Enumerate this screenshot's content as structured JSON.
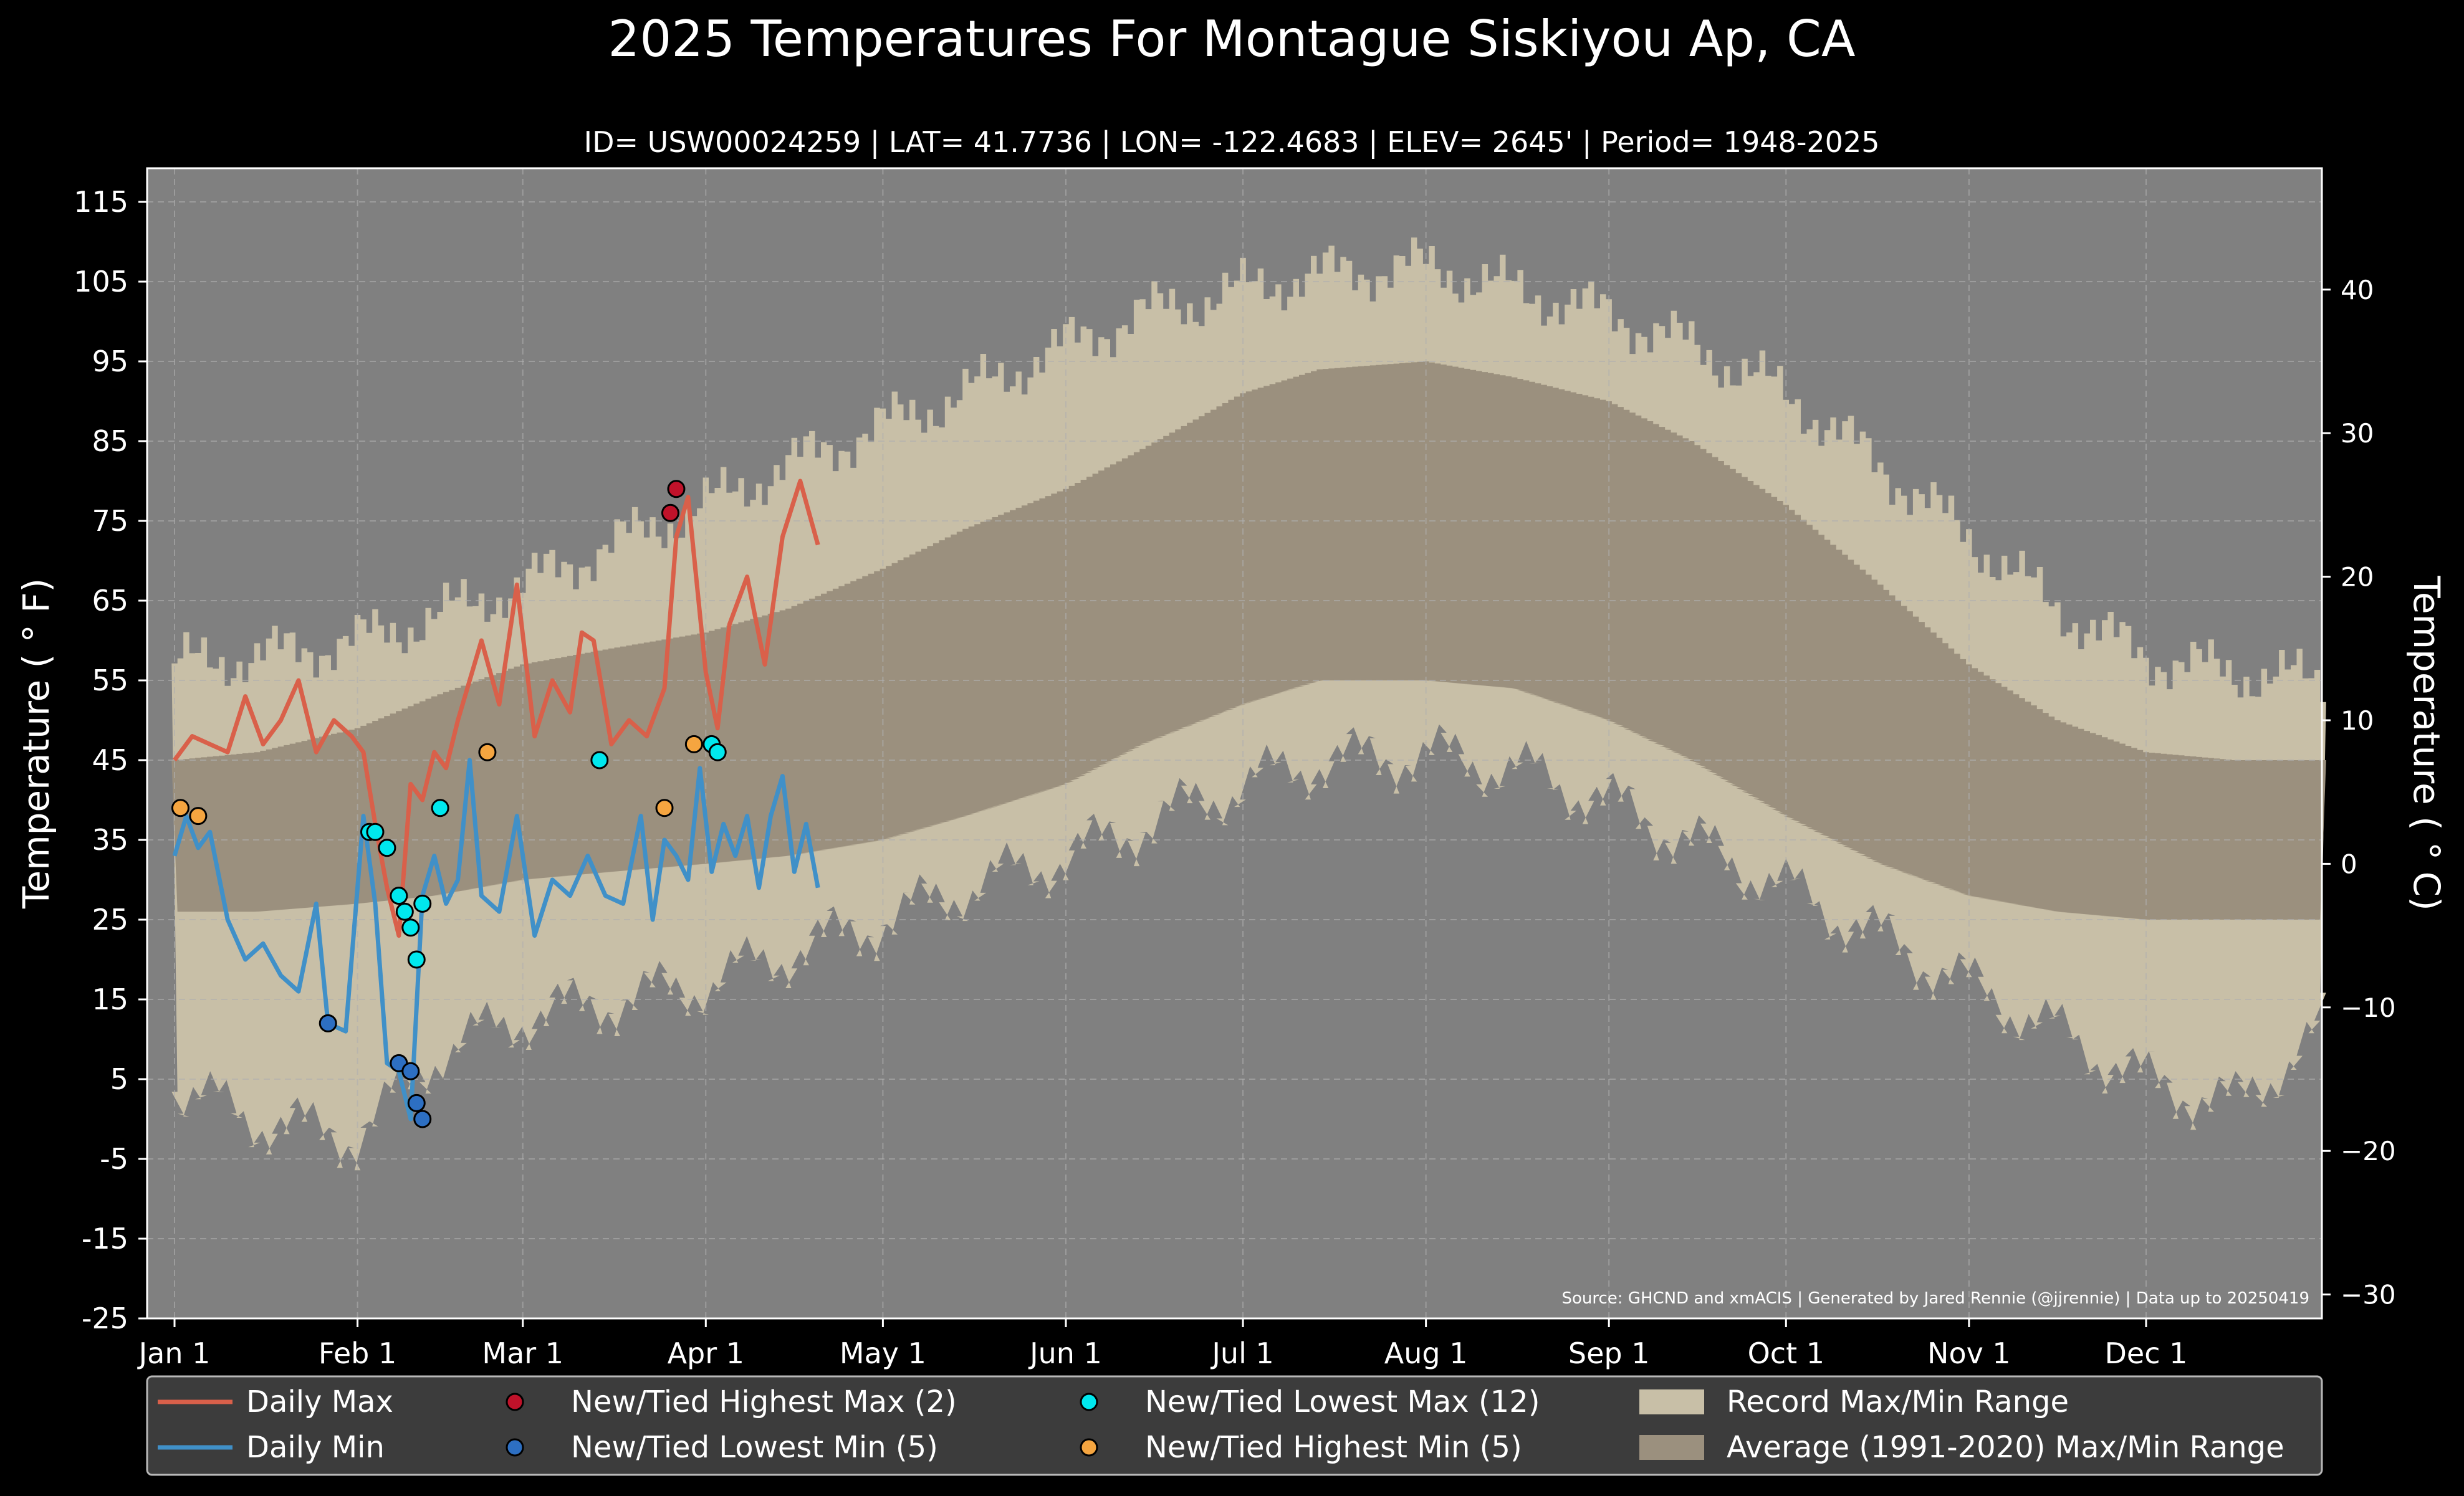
{
  "chart_data": {
    "type": "line",
    "title": "2025 Temperatures For Montague Siskiyou Ap, CA",
    "subtitle": "ID= USW00024259 | LAT= 41.7736 | LON= -122.4683 | ELEV= 2645' | Period= 1948-2025",
    "ylabel_left": "Temperature ($^\\circ$F)",
    "ylabel_left_display": "Temperature ( ° F)",
    "ylabel_right_display": "Temperature ( ° C)",
    "ylim_f": [
      -25,
      119
    ],
    "y_ticks_f": [
      "115",
      "105",
      "95",
      "85",
      "75",
      "65",
      "55",
      "45",
      "35",
      "25",
      "15",
      "5",
      "-5",
      "-15",
      "-25"
    ],
    "y_ticks_c": [
      "40",
      "30",
      "20",
      "10",
      "0",
      "−10",
      "−20",
      "−30"
    ],
    "x_ticks": [
      "Jan 1",
      "Feb 1",
      "Mar 1",
      "Apr 1",
      "May 1",
      "Jun 1",
      "Jul 1",
      "Aug 1",
      "Sep 1",
      "Oct 1",
      "Nov 1",
      "Dec 1"
    ],
    "x_tick_days": [
      1,
      32,
      60,
      91,
      121,
      152,
      182,
      213,
      244,
      274,
      305,
      335
    ],
    "days_in_year": 365,
    "grid": true,
    "source": "Source: GHCND and xmACIS | Generated by Jared Rennie (@jjrennie) | Data up to 20250419",
    "record_max_envelope": {
      "day": [
        1,
        15,
        32,
        45,
        60,
        75,
        91,
        105,
        121,
        135,
        152,
        165,
        182,
        195,
        213,
        228,
        244,
        258,
        274,
        290,
        305,
        320,
        335,
        350,
        365
      ],
      "f": [
        57,
        58,
        60,
        63,
        67,
        72,
        77,
        82,
        87,
        91,
        97,
        101,
        104,
        106,
        107,
        104,
        101,
        97,
        91,
        82,
        73,
        64,
        58,
        56,
        55
      ]
    },
    "record_min_envelope": {
      "day": [
        1,
        15,
        32,
        45,
        60,
        75,
        91,
        105,
        121,
        135,
        152,
        165,
        182,
        195,
        213,
        228,
        244,
        258,
        274,
        290,
        305,
        320,
        335,
        350,
        365
      ],
      "f": [
        4,
        0,
        -2,
        8,
        13,
        15,
        17,
        21,
        25,
        29,
        33,
        37,
        42,
        45,
        46,
        44,
        40,
        35,
        29,
        23,
        17,
        11,
        5,
        2,
        11
      ]
    },
    "avg_max_normal": {
      "day": [
        1,
        15,
        32,
        45,
        60,
        75,
        91,
        105,
        121,
        135,
        152,
        165,
        182,
        195,
        213,
        228,
        244,
        258,
        274,
        290,
        305,
        320,
        335,
        350,
        365
      ],
      "f": [
        45,
        46,
        49,
        53,
        57,
        59,
        61,
        64,
        69,
        74,
        79,
        84,
        91,
        94,
        95,
        93,
        90,
        85,
        77,
        67,
        57,
        50,
        46,
        45,
        45
      ]
    },
    "avg_min_normal": {
      "day": [
        1,
        15,
        32,
        45,
        60,
        75,
        91,
        105,
        121,
        135,
        152,
        165,
        182,
        195,
        213,
        228,
        244,
        258,
        274,
        290,
        305,
        320,
        335,
        350,
        365
      ],
      "f": [
        26,
        26,
        27,
        28,
        30,
        31,
        32,
        33,
        35,
        38,
        42,
        47,
        52,
        55,
        55,
        54,
        50,
        45,
        38,
        32,
        28,
        26,
        25,
        25,
        25
      ]
    },
    "series": [
      {
        "name": "Daily Max",
        "color": "#d9604a",
        "day": [
          1,
          4,
          7,
          10,
          13,
          16,
          19,
          22,
          25,
          28,
          31,
          33,
          35,
          37,
          39,
          41,
          43,
          45,
          47,
          49,
          51,
          53,
          56,
          59,
          62,
          65,
          68,
          70,
          72,
          75,
          78,
          81,
          84,
          86,
          88,
          91,
          93,
          95,
          98,
          101,
          104,
          107,
          110
        ],
        "f": [
          45,
          48,
          47,
          46,
          53,
          47,
          50,
          55,
          46,
          50,
          48,
          46,
          37,
          29,
          23,
          42,
          40,
          46,
          44,
          50,
          55,
          60,
          52,
          67,
          48,
          55,
          51,
          61,
          60,
          47,
          50,
          48,
          54,
          73,
          78,
          56,
          49,
          62,
          68,
          57,
          73,
          80,
          72
        ]
      },
      {
        "name": "Daily Min",
        "color": "#4090c8",
        "day": [
          1,
          3,
          5,
          7,
          10,
          13,
          16,
          19,
          22,
          25,
          27,
          30,
          33,
          35,
          37,
          39,
          41,
          43,
          45,
          47,
          49,
          51,
          53,
          56,
          59,
          62,
          65,
          68,
          71,
          74,
          77,
          80,
          82,
          84,
          86,
          88,
          90,
          92,
          94,
          96,
          98,
          100,
          102,
          104,
          106,
          108,
          110
        ],
        "f": [
          33,
          38,
          34,
          36,
          25,
          20,
          22,
          18,
          16,
          27,
          12,
          11,
          38,
          27,
          7,
          6,
          0,
          28,
          33,
          27,
          30,
          45,
          28,
          26,
          38,
          23,
          30,
          28,
          33,
          28,
          27,
          38,
          25,
          35,
          33,
          30,
          44,
          31,
          37,
          33,
          38,
          29,
          38,
          43,
          31,
          37,
          29
        ]
      }
    ],
    "records": {
      "new_tied_highest_max": {
        "label": "New/Tied Highest Max (2)",
        "color": "#c0122a",
        "points": [
          {
            "day": 85,
            "f": 76
          },
          {
            "day": 86,
            "f": 79
          }
        ]
      },
      "new_tied_lowest_min": {
        "label": "New/Tied Lowest Min (5)",
        "color": "#2d6fc2",
        "points": [
          {
            "day": 27,
            "f": 12
          },
          {
            "day": 39,
            "f": 7
          },
          {
            "day": 41,
            "f": 6
          },
          {
            "day": 42,
            "f": 2
          },
          {
            "day": 43,
            "f": 0
          }
        ]
      },
      "new_tied_lowest_max": {
        "label": "New/Tied Lowest Max (12)",
        "color": "#00e8ee",
        "points": [
          {
            "day": 34,
            "f": 36
          },
          {
            "day": 35,
            "f": 36
          },
          {
            "day": 37,
            "f": 34
          },
          {
            "day": 39,
            "f": 28
          },
          {
            "day": 40,
            "f": 26
          },
          {
            "day": 41,
            "f": 24
          },
          {
            "day": 42,
            "f": 20
          },
          {
            "day": 43,
            "f": 27
          },
          {
            "day": 46,
            "f": 39
          },
          {
            "day": 73,
            "f": 45
          },
          {
            "day": 92,
            "f": 47
          },
          {
            "day": 93,
            "f": 46
          }
        ]
      },
      "new_tied_highest_min": {
        "label": "New/Tied Highest Min (5)",
        "color": "#f5a540",
        "points": [
          {
            "day": 2,
            "f": 39
          },
          {
            "day": 5,
            "f": 38
          },
          {
            "day": 54,
            "f": 46
          },
          {
            "day": 84,
            "f": 39
          },
          {
            "day": 89,
            "f": 47
          }
        ]
      }
    },
    "legend": {
      "placement": "bottom",
      "daily_max": "Daily Max",
      "daily_min": "Daily Min",
      "highest_max": "New/Tied Highest Max (2)",
      "lowest_min": "New/Tied Lowest Min (5)",
      "lowest_max": "New/Tied Lowest Max (12)",
      "highest_min": "New/Tied Highest Min (5)",
      "record_range": "Record Max/Min Range",
      "avg_range": "Average (1991-2020) Max/Min Range"
    },
    "colors": {
      "background": "#000000",
      "plot_bg": "#808080",
      "record_band": "#c8bfa7",
      "avg_band": "#9b907e",
      "legend_bg": "#3c3c3c"
    }
  }
}
